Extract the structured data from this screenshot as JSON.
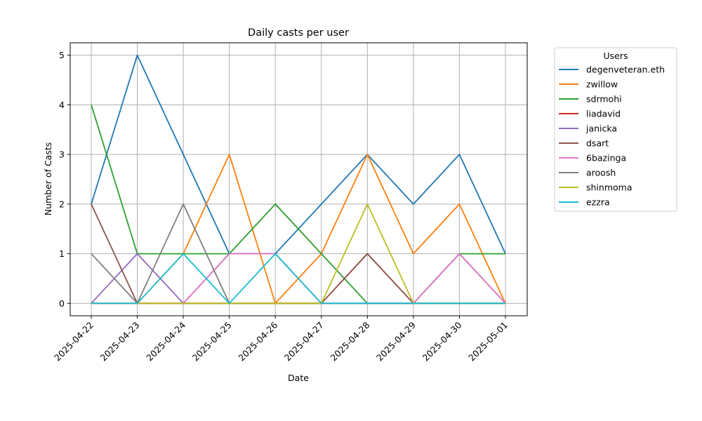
{
  "chart_data": {
    "type": "line",
    "title": "Daily casts per user",
    "xlabel": "Date",
    "ylabel": "Number of Casts",
    "x": [
      "2025-04-22",
      "2025-04-23",
      "2025-04-24",
      "2025-04-25",
      "2025-04-26",
      "2025-04-27",
      "2025-04-28",
      "2025-04-29",
      "2025-04-30",
      "2025-05-01"
    ],
    "ylim": [
      -0.25,
      5.25
    ],
    "yticks": [
      0,
      1,
      2,
      3,
      4,
      5
    ],
    "grid": true,
    "legend": {
      "title": "Users",
      "placement": "outside-right"
    },
    "series": [
      {
        "name": "degenveteran.eth",
        "color": "#1f77b4",
        "values": [
          2,
          5,
          3,
          1,
          1,
          2,
          3,
          2,
          3,
          1
        ]
      },
      {
        "name": "zwillow",
        "color": "#ff7f0e",
        "values": [
          0,
          0,
          1,
          3,
          0,
          1,
          3,
          1,
          2,
          0
        ]
      },
      {
        "name": "sdrmohi",
        "color": "#2ca02c",
        "values": [
          4,
          1,
          1,
          1,
          2,
          1,
          0,
          0,
          1,
          1
        ]
      },
      {
        "name": "liadavid",
        "color": "#d62728",
        "values": [
          0,
          0,
          0,
          0,
          0,
          0,
          1,
          0,
          0,
          0
        ]
      },
      {
        "name": "janicka",
        "color": "#9467bd",
        "values": [
          0,
          1,
          0,
          1,
          1,
          0,
          0,
          0,
          1,
          0
        ]
      },
      {
        "name": "dsart",
        "color": "#8c564b",
        "values": [
          2,
          0,
          0,
          0,
          0,
          0,
          1,
          0,
          0,
          0
        ]
      },
      {
        "name": "6bazinga",
        "color": "#e377c2",
        "values": [
          0,
          0,
          0,
          1,
          1,
          0,
          0,
          0,
          1,
          0
        ]
      },
      {
        "name": "aroosh",
        "color": "#7f7f7f",
        "values": [
          1,
          0,
          2,
          0,
          0,
          0,
          0,
          0,
          0,
          0
        ]
      },
      {
        "name": "shinmoma",
        "color": "#bcbd22",
        "values": [
          0,
          0,
          0,
          0,
          0,
          0,
          2,
          0,
          0,
          0
        ]
      },
      {
        "name": "ezzra",
        "color": "#17becf",
        "values": [
          0,
          0,
          1,
          0,
          1,
          0,
          0,
          0,
          0,
          0
        ]
      }
    ]
  }
}
